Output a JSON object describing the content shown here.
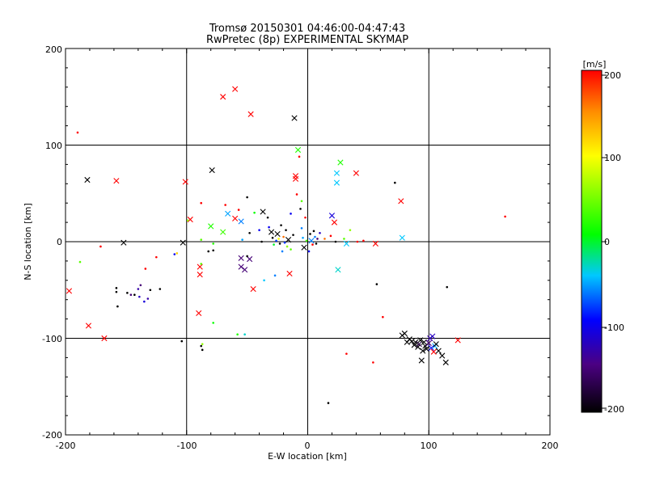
{
  "chart_data": {
    "type": "scatter",
    "title": "Tromsø 20150301 04:46:00-04:47:43",
    "subtitle": "RwPretec (8p) EXPERIMENTAL SKYMAP",
    "xlabel": "E-W location [km]",
    "ylabel": "N-S location [km]",
    "xlim": [
      -200,
      200
    ],
    "ylim": [
      -200,
      200
    ],
    "x_ticks": [
      "-200",
      "-100",
      "0",
      "100",
      "200"
    ],
    "y_ticks": [
      "-200",
      "-100",
      "0",
      "100",
      "200"
    ],
    "grid": true,
    "colorbar": {
      "label": "[m/s]",
      "range": [
        -200,
        200
      ],
      "ticks": [
        "-200",
        "-100",
        "0",
        "100",
        "200"
      ]
    },
    "points": [
      [
        -190,
        113,
        200,
        "dot"
      ],
      [
        -182,
        64,
        -200,
        "x"
      ],
      [
        -158,
        63,
        200,
        "x"
      ],
      [
        -171,
        -5,
        200,
        "dot"
      ],
      [
        -152,
        -1,
        -200,
        "x"
      ],
      [
        -188,
        -21,
        40,
        "dot"
      ],
      [
        -197,
        -51,
        200,
        "x"
      ],
      [
        -181,
        -87,
        200,
        "x"
      ],
      [
        -168,
        -100,
        200,
        "x"
      ],
      [
        -158,
        -48,
        -200,
        "dot"
      ],
      [
        -158,
        -52,
        -200,
        "dot"
      ],
      [
        -157,
        -67,
        -200,
        "dot"
      ],
      [
        -149,
        -53,
        -200,
        "dot"
      ],
      [
        -146,
        -55,
        -150,
        "dot"
      ],
      [
        -143,
        -55,
        -200,
        "dot"
      ],
      [
        -139,
        -57,
        -120,
        "dot"
      ],
      [
        -140,
        -49,
        -130,
        "dot"
      ],
      [
        -138,
        -45,
        -150,
        "dot"
      ],
      [
        -135,
        -62,
        -110,
        "dot"
      ],
      [
        -132,
        -59,
        -130,
        "dot"
      ],
      [
        -134,
        -28,
        200,
        "dot"
      ],
      [
        -130,
        -50,
        -200,
        "dot"
      ],
      [
        -125,
        -16,
        200,
        "dot"
      ],
      [
        -122,
        -49,
        -200,
        "dot"
      ],
      [
        -110,
        -13,
        -100,
        "dot"
      ],
      [
        -104,
        -103,
        -200,
        "dot"
      ],
      [
        -101,
        62,
        200,
        "x"
      ],
      [
        -103,
        -1,
        -200,
        "x"
      ],
      [
        -97,
        23,
        200,
        "x"
      ],
      [
        -99,
        22,
        60,
        "dot"
      ],
      [
        -108,
        -12,
        120,
        "dot"
      ],
      [
        -88,
        40,
        200,
        "dot"
      ],
      [
        -89,
        -26,
        200,
        "x"
      ],
      [
        -89,
        -34,
        200,
        "x"
      ],
      [
        -90,
        -74,
        200,
        "x"
      ],
      [
        -88,
        -108,
        -200,
        "dot"
      ],
      [
        -87,
        -112,
        -200,
        "dot"
      ],
      [
        -87,
        -106,
        60,
        "dot"
      ],
      [
        -88,
        -23,
        40,
        "dot"
      ],
      [
        -88,
        2,
        40,
        "dot"
      ],
      [
        -82,
        -10,
        -200,
        "dot"
      ],
      [
        -78,
        -9,
        -200,
        "dot"
      ],
      [
        -79,
        74,
        -200,
        "x"
      ],
      [
        -80,
        16,
        20,
        "x"
      ],
      [
        -78,
        -2,
        20,
        "dot"
      ],
      [
        -78,
        -84,
        10,
        "dot"
      ],
      [
        -70,
        150,
        200,
        "x"
      ],
      [
        -70,
        10,
        30,
        "x"
      ],
      [
        -68,
        38,
        200,
        "dot"
      ],
      [
        -66,
        29,
        -50,
        "x"
      ],
      [
        -60,
        158,
        200,
        "x"
      ],
      [
        -60,
        24,
        200,
        "x"
      ],
      [
        -57,
        33,
        200,
        "dot"
      ],
      [
        -58,
        -96,
        20,
        "dot"
      ],
      [
        -52,
        -96,
        -30,
        "dot"
      ],
      [
        -55,
        21,
        -60,
        "x"
      ],
      [
        -54,
        2,
        -50,
        "dot"
      ],
      [
        -55,
        -17,
        -150,
        "x"
      ],
      [
        -55,
        -26,
        -150,
        "x"
      ],
      [
        -52,
        -29,
        -150,
        "x"
      ],
      [
        -48,
        -18,
        -150,
        "x"
      ],
      [
        -47,
        132,
        200,
        "x"
      ],
      [
        -45,
        -49,
        200,
        "x"
      ],
      [
        -50,
        46,
        -200,
        "dot"
      ],
      [
        -50,
        -15,
        -200,
        "dot"
      ],
      [
        -48,
        9,
        -200,
        "dot"
      ],
      [
        -44,
        30,
        10,
        "dot"
      ],
      [
        -40,
        12,
        -100,
        "dot"
      ],
      [
        -38,
        0,
        -200,
        "dot"
      ],
      [
        -37,
        31,
        -200,
        "x"
      ],
      [
        -36,
        -40,
        -40,
        "dot"
      ],
      [
        -33,
        25,
        -200,
        "dot"
      ],
      [
        -32,
        15,
        -100,
        "dot"
      ],
      [
        -30,
        10,
        -200,
        "x"
      ],
      [
        -29,
        4,
        -200,
        "dot"
      ],
      [
        -28,
        -3,
        0,
        "dot"
      ],
      [
        -27,
        -35,
        -60,
        "dot"
      ],
      [
        -26,
        1,
        -80,
        "dot"
      ],
      [
        -25,
        8,
        -200,
        "x"
      ],
      [
        -24,
        3,
        100,
        "dot"
      ],
      [
        -23,
        -2,
        -200,
        "dot"
      ],
      [
        -22,
        17,
        -200,
        "dot"
      ],
      [
        -21,
        -10,
        -60,
        "dot"
      ],
      [
        -20,
        5,
        160,
        "dot"
      ],
      [
        -19,
        -1,
        -80,
        "dot"
      ],
      [
        -18,
        12,
        -200,
        "dot"
      ],
      [
        -17,
        -5,
        60,
        "dot"
      ],
      [
        -16,
        2,
        -200,
        "x"
      ],
      [
        -15,
        -33,
        200,
        "x"
      ],
      [
        -14,
        29,
        -100,
        "dot"
      ],
      [
        -14,
        -8,
        40,
        "dot"
      ],
      [
        -12,
        7,
        -200,
        "dot"
      ],
      [
        -11,
        128,
        -200,
        "x"
      ],
      [
        -10,
        68,
        200,
        "x"
      ],
      [
        -10,
        65,
        200,
        "x"
      ],
      [
        -9,
        49,
        200,
        "dot"
      ],
      [
        -8,
        95,
        20,
        "x"
      ],
      [
        -7,
        88,
        200,
        "dot"
      ],
      [
        -6,
        34,
        -200,
        "dot"
      ],
      [
        -5,
        42,
        40,
        "dot"
      ],
      [
        -5,
        14,
        -60,
        "dot"
      ],
      [
        -4,
        4,
        -50,
        "dot"
      ],
      [
        -3,
        -6,
        -200,
        "x"
      ],
      [
        -2,
        25,
        200,
        "dot"
      ],
      [
        -1,
        1,
        30,
        "dot"
      ],
      [
        1,
        -10,
        -100,
        "dot"
      ],
      [
        2,
        8,
        -200,
        "dot"
      ],
      [
        3,
        1,
        -60,
        "x"
      ],
      [
        4,
        -3,
        200,
        "dot"
      ],
      [
        5,
        11,
        -200,
        "dot"
      ],
      [
        6,
        5,
        -60,
        "dot"
      ],
      [
        7,
        -2,
        -200,
        "dot"
      ],
      [
        8,
        3,
        -150,
        "dot"
      ],
      [
        10,
        9,
        -120,
        "dot"
      ],
      [
        14,
        3,
        160,
        "dot"
      ],
      [
        17,
        -167,
        -200,
        "dot"
      ],
      [
        19,
        6,
        200,
        "dot"
      ],
      [
        20,
        27,
        -110,
        "x"
      ],
      [
        22,
        20,
        200,
        "x"
      ],
      [
        23,
        0,
        -200,
        "dot"
      ],
      [
        24,
        71,
        -40,
        "x"
      ],
      [
        24,
        61,
        -40,
        "x"
      ],
      [
        25,
        -29,
        -30,
        "x"
      ],
      [
        27,
        82,
        20,
        "x"
      ],
      [
        30,
        3,
        40,
        "dot"
      ],
      [
        32,
        -2,
        -40,
        "x"
      ],
      [
        32,
        -116,
        200,
        "dot"
      ],
      [
        35,
        12,
        60,
        "dot"
      ],
      [
        40,
        71,
        200,
        "x"
      ],
      [
        41,
        0,
        200,
        "dot"
      ],
      [
        46,
        1,
        200,
        "dot"
      ],
      [
        54,
        -125,
        200,
        "dot"
      ],
      [
        56,
        -2,
        200,
        "x"
      ],
      [
        57,
        -44,
        -200,
        "dot"
      ],
      [
        62,
        -78,
        200,
        "dot"
      ],
      [
        72,
        61,
        -200,
        "dot"
      ],
      [
        77,
        42,
        200,
        "x"
      ],
      [
        78,
        4,
        -40,
        "x"
      ],
      [
        78,
        -97,
        -200,
        "x"
      ],
      [
        80,
        -95,
        -200,
        "x"
      ],
      [
        82,
        -104,
        -200,
        "x"
      ],
      [
        84,
        -101,
        -200,
        "x"
      ],
      [
        86,
        -103,
        -200,
        "x"
      ],
      [
        88,
        -107,
        -200,
        "x"
      ],
      [
        89,
        -104,
        -200,
        "x"
      ],
      [
        91,
        -109,
        -200,
        "x"
      ],
      [
        92,
        -106,
        -170,
        "x"
      ],
      [
        93,
        -102,
        -200,
        "x"
      ],
      [
        94,
        -123,
        -200,
        "x"
      ],
      [
        95,
        -113,
        -200,
        "x"
      ],
      [
        96,
        -104,
        -200,
        "x"
      ],
      [
        97,
        -108,
        -200,
        "x"
      ],
      [
        98,
        -111,
        -200,
        "x"
      ],
      [
        100,
        -105,
        -150,
        "x"
      ],
      [
        101,
        -100,
        -130,
        "x"
      ],
      [
        102,
        -110,
        -100,
        "x"
      ],
      [
        103,
        -98,
        -120,
        "x"
      ],
      [
        104,
        -114,
        200,
        "x"
      ],
      [
        105,
        -108,
        -50,
        "x"
      ],
      [
        106,
        -106,
        -200,
        "x"
      ],
      [
        108,
        -113,
        -200,
        "x"
      ],
      [
        111,
        -118,
        -200,
        "x"
      ],
      [
        114,
        -125,
        -200,
        "x"
      ],
      [
        115,
        -47,
        -200,
        "dot"
      ],
      [
        124,
        -102,
        200,
        "x"
      ],
      [
        163,
        26,
        200,
        "dot"
      ]
    ]
  }
}
